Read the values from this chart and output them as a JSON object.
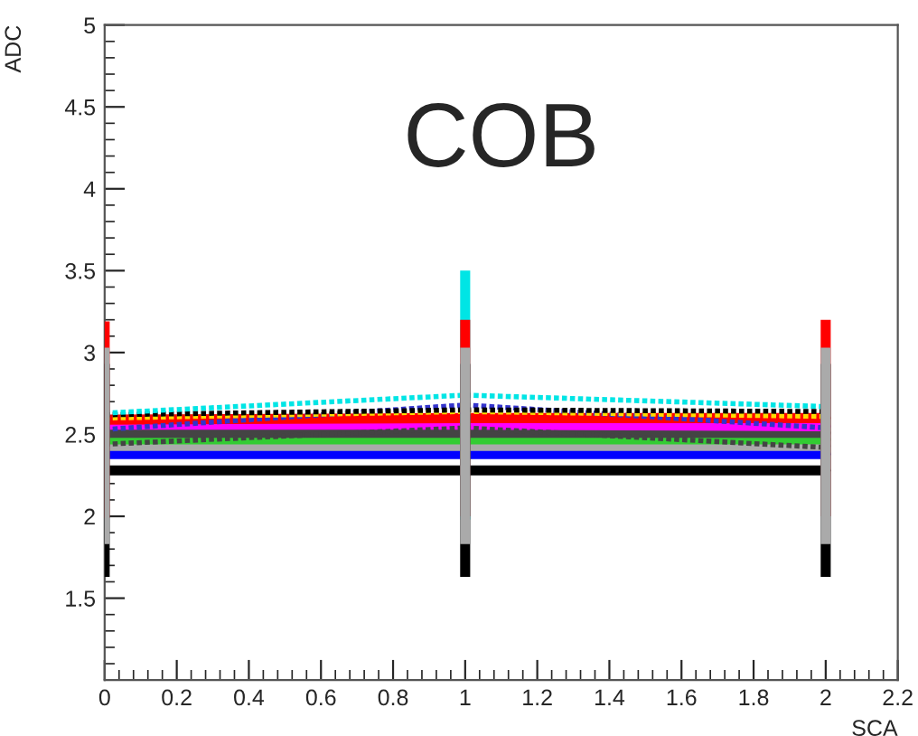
{
  "chart_data": {
    "type": "line",
    "title": "COB",
    "xlabel": "SCA",
    "ylabel": "ADC",
    "x": [
      0,
      1,
      2
    ],
    "series": [
      {
        "color": "#000000",
        "line_style": "solid",
        "values": [
          2.28,
          2.28,
          2.28
        ],
        "errors": [
          0.65,
          0.65,
          0.65
        ]
      },
      {
        "color": "#0000ff",
        "line_style": "solid",
        "values": [
          2.38,
          2.38,
          2.38
        ]
      },
      {
        "color": "#aaaaaa",
        "line_style": "solid",
        "values": [
          2.43,
          2.43,
          2.43
        ],
        "errors": [
          0.6,
          0.6,
          0.6
        ]
      },
      {
        "color": "#33cc33",
        "line_style": "solid",
        "values": [
          2.47,
          2.47,
          2.47
        ]
      },
      {
        "color": "#444444",
        "line_style": "solid",
        "values": [
          2.51,
          2.51,
          2.51
        ]
      },
      {
        "color": "#ff00ff",
        "line_style": "solid",
        "values": [
          2.56,
          2.56,
          2.55
        ]
      },
      {
        "color": "#ff0000",
        "line_style": "solid",
        "values": [
          2.59,
          2.6,
          2.6
        ],
        "errors": [
          0.6,
          0.6,
          0.6
        ]
      },
      {
        "color": "#444444",
        "line_style": "dotted",
        "values": [
          2.44,
          2.54,
          2.42
        ]
      },
      {
        "color": "#3333cc",
        "line_style": "dotted",
        "values": [
          2.53,
          2.68,
          2.54
        ]
      },
      {
        "color": "#ffdd00",
        "line_style": "dotted",
        "values": [
          2.6,
          2.64,
          2.61
        ]
      },
      {
        "color": "#000000",
        "line_style": "dotted",
        "values": [
          2.62,
          2.65,
          2.64
        ]
      },
      {
        "color": "#00e5e5",
        "line_style": "dotted",
        "values": [
          2.63,
          2.74,
          2.67
        ],
        "errors": [
          null,
          0.76,
          null
        ]
      }
    ],
    "xlim": [
      0,
      2.2
    ],
    "xticks": [
      0,
      0.2,
      0.4,
      0.6,
      0.8,
      1,
      1.2,
      1.4,
      1.6,
      1.8,
      2,
      2.2
    ],
    "ylim": [
      1,
      5
    ],
    "yticks": [
      1.5,
      2,
      2.5,
      3,
      3.5,
      4,
      4.5,
      5
    ],
    "grid": false,
    "legend": false
  }
}
